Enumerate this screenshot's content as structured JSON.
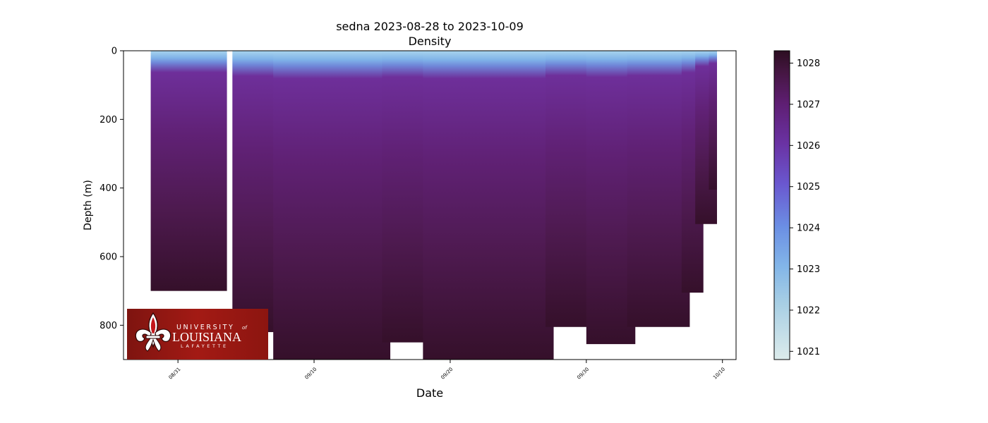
{
  "chart_data": {
    "type": "heatmap",
    "title": "sedna 2023-08-28 to 2023-10-09",
    "subtitle": "Density",
    "xlabel": "Date",
    "ylabel": "Depth (m)",
    "x_ticks": [
      "08/31",
      "09/10",
      "09/20",
      "09/30",
      "10/10"
    ],
    "y_ticks": [
      0,
      200,
      400,
      600,
      800
    ],
    "xlim": [
      "2023-08-27",
      "2023-10-11"
    ],
    "ylim": [
      900,
      0
    ],
    "y_inverted": true,
    "colorbar": {
      "ticks": [
        1021,
        1022,
        1023,
        1024,
        1025,
        1026,
        1027,
        1028
      ],
      "range": [
        1020.8,
        1028.3
      ],
      "colors": [
        "#dcebeb",
        "#8cc0e6",
        "#6d96e6",
        "#6b56c9",
        "#6a2f9a",
        "#5d1d6f",
        "#47163f",
        "#2f0f24"
      ]
    },
    "profiles": [
      {
        "start": "2023-08-29",
        "end": "2023-09-03",
        "max_depth": 700
      },
      {
        "start": "2023-09-04",
        "end": "2023-09-07",
        "max_depth": 820
      },
      {
        "start": "2023-09-07",
        "end": "2023-09-15",
        "max_depth": 900
      },
      {
        "start": "2023-09-15",
        "end": "2023-09-18",
        "max_depth": 850
      },
      {
        "start": "2023-09-18",
        "end": "2023-09-27",
        "max_depth": 900
      },
      {
        "start": "2023-09-27",
        "end": "2023-09-30",
        "max_depth": 805
      },
      {
        "start": "2023-09-30",
        "end": "2023-10-03",
        "max_depth": 855
      },
      {
        "start": "2023-10-03",
        "end": "2023-10-07",
        "max_depth": 805
      },
      {
        "start": "2023-10-07",
        "end": "2023-10-08",
        "max_depth": 705
      },
      {
        "start": "2023-10-08",
        "end": "2023-10-09",
        "max_depth": 505
      },
      {
        "start": "2023-10-09",
        "end": "2023-10-09",
        "max_depth": 405
      }
    ],
    "surface_density": 1022.5,
    "mixed_layer_depth": 25
  },
  "logo": {
    "line1": "UNIVERSITY",
    "of": "of",
    "line2": "LOUISIANA",
    "line3": "LAFAYETTE",
    "bg_color": "#9b1a14"
  }
}
